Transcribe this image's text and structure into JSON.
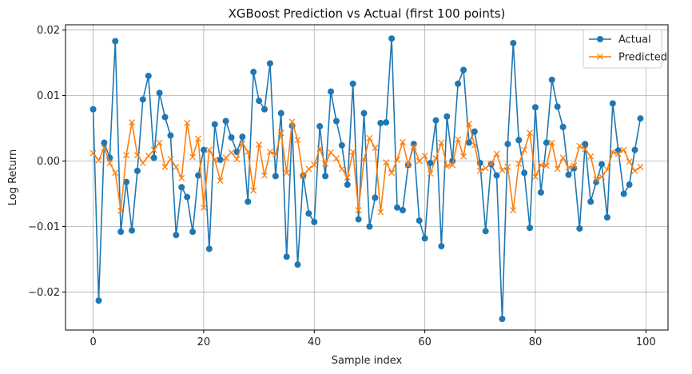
{
  "chart_data": {
    "type": "line",
    "title": "XGBoost Prediction vs Actual (first 100 points)",
    "xlabel": "Sample index",
    "ylabel": "Log Return",
    "xlim": [
      -5,
      104
    ],
    "ylim": [
      -0.0258,
      0.0208
    ],
    "xticks": [
      0,
      20,
      40,
      60,
      80,
      100
    ],
    "yticks": [
      -0.02,
      -0.01,
      0.0,
      0.01,
      0.02
    ],
    "ytick_labels": [
      "−0.02",
      "−0.01",
      "0.00",
      "0.01",
      "0.02"
    ],
    "grid": true,
    "legend_position": "top-right",
    "series": [
      {
        "name": "Actual",
        "color": "#1f77b4",
        "marker": "circle",
        "values": [
          0.0079,
          -0.0213,
          0.0028,
          0.0005,
          0.0183,
          -0.0108,
          -0.0032,
          -0.0106,
          -0.0015,
          0.0094,
          0.013,
          0.0005,
          0.0104,
          0.0067,
          0.0039,
          -0.0113,
          -0.004,
          -0.0055,
          -0.0108,
          -0.0022,
          0.0017,
          -0.0134,
          0.0056,
          0.0002,
          0.0061,
          0.0036,
          0.0014,
          0.0037,
          -0.0062,
          0.0136,
          0.0092,
          0.0079,
          0.0149,
          -0.0023,
          0.0073,
          -0.0146,
          0.0054,
          -0.0158,
          -0.0022,
          -0.008,
          -0.0093,
          0.0053,
          -0.0023,
          0.0106,
          0.0061,
          0.0024,
          -0.0036,
          0.0118,
          -0.0089,
          0.0073,
          -0.01,
          -0.0056,
          0.0058,
          0.0059,
          0.0187,
          -0.0071,
          -0.0075,
          -0.0006,
          0.0026,
          -0.0091,
          -0.0118,
          -0.0003,
          0.0062,
          -0.013,
          0.0068,
          0.0,
          0.0118,
          0.0139,
          0.0028,
          0.0045,
          -0.0003,
          -0.0107,
          -0.0005,
          -0.0022,
          -0.0241,
          0.0026,
          0.018,
          0.0032,
          -0.0018,
          -0.0102,
          0.0082,
          -0.0048,
          0.0028,
          0.0124,
          0.0083,
          0.0052,
          -0.0021,
          -0.0011,
          -0.0103,
          0.0026,
          -0.0062,
          -0.0032,
          -0.0005,
          -0.0086,
          0.0088,
          0.0016,
          -0.005,
          -0.0036,
          0.0017,
          0.0065
        ]
      },
      {
        "name": "Predicted",
        "color": "#ff7f0e",
        "marker": "x",
        "values": [
          0.0012,
          0.0001,
          0.002,
          -0.0003,
          -0.0018,
          -0.0076,
          0.0009,
          0.0059,
          0.0009,
          -0.0003,
          0.0008,
          0.0017,
          0.0028,
          -0.0009,
          0.0003,
          -0.0009,
          -0.0026,
          0.0058,
          0.0006,
          0.0034,
          -0.0071,
          0.0017,
          0.0002,
          -0.003,
          0.0005,
          0.0013,
          0.0003,
          0.0027,
          0.0014,
          -0.0045,
          0.0025,
          -0.0022,
          0.0014,
          0.001,
          0.0043,
          -0.0018,
          0.006,
          0.0032,
          -0.0023,
          -0.0012,
          -0.0006,
          0.0019,
          -0.0004,
          0.0013,
          0.0004,
          -0.0012,
          -0.0025,
          0.0014,
          -0.0075,
          0.0002,
          0.0035,
          0.002,
          -0.0078,
          -0.0002,
          -0.0018,
          0.0002,
          0.0029,
          -0.0006,
          0.0022,
          0.0,
          0.0008,
          -0.0019,
          0.0004,
          0.0028,
          -0.0008,
          -0.0006,
          0.0033,
          0.0007,
          0.0057,
          0.0024,
          -0.0015,
          -0.0011,
          -0.0004,
          0.0011,
          -0.0014,
          -0.0009,
          -0.0075,
          -0.0004,
          0.0017,
          0.0043,
          -0.0024,
          -0.0006,
          -0.0007,
          0.0028,
          -0.0012,
          0.0005,
          -0.001,
          -0.0007,
          0.0023,
          0.0018,
          0.0007,
          -0.0028,
          -0.0024,
          -0.0013,
          0.0014,
          0.0011,
          0.0017,
          -0.0001,
          -0.0015,
          -0.0009
        ]
      }
    ]
  }
}
